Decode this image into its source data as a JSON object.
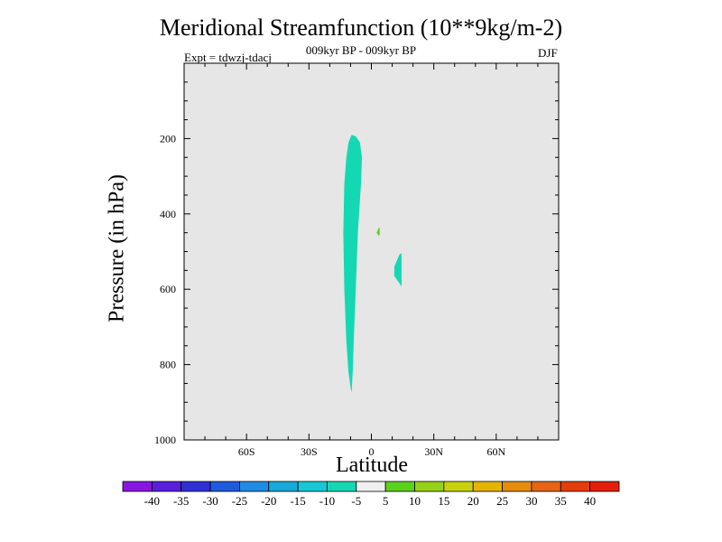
{
  "chart_data": {
    "type": "heatmap",
    "title": "Meridional Streamfunction (10**9kg/m-2)",
    "subtitle": "009kyr BP - 009kyr BP",
    "left_note": "Expt = tdwzj-tdacj",
    "right_note": "DJF",
    "xlabel": "Latitude",
    "ylabel": "Pressure (in hPa)",
    "xlim": [
      -90,
      90
    ],
    "ylim": [
      0,
      1000
    ],
    "y_inverted": true,
    "grid": false,
    "background_color": "#e6e6e6",
    "x_ticks": [
      {
        "value": -60,
        "label": "60S"
      },
      {
        "value": -30,
        "label": "30S"
      },
      {
        "value": 0,
        "label": "0"
      },
      {
        "value": 30,
        "label": "30N"
      },
      {
        "value": 60,
        "label": "60N"
      }
    ],
    "y_ticks": [
      {
        "value": 200,
        "label": "200"
      },
      {
        "value": 400,
        "label": "400"
      },
      {
        "value": 600,
        "label": "600"
      },
      {
        "value": 800,
        "label": "800"
      },
      {
        "value": 1000,
        "label": "1000"
      }
    ],
    "regions": [
      {
        "level": "-10 to -5",
        "color": "#14d8b4",
        "outline": [
          [
            -9.5,
            190
          ],
          [
            -7.5,
            194
          ],
          [
            -5.5,
            210
          ],
          [
            -4.5,
            250
          ],
          [
            -5,
            320
          ],
          [
            -6.5,
            450
          ],
          [
            -7.5,
            600
          ],
          [
            -8.5,
            740
          ],
          [
            -9,
            820
          ],
          [
            -9.5,
            875
          ],
          [
            -10,
            860
          ],
          [
            -11,
            820
          ],
          [
            -12,
            740
          ],
          [
            -13,
            600
          ],
          [
            -13.5,
            450
          ],
          [
            -13,
            320
          ],
          [
            -12,
            250
          ],
          [
            -11,
            210
          ]
        ]
      },
      {
        "level": "5 to 10",
        "color": "#5ad21a",
        "outline": [
          [
            3.5,
            438
          ],
          [
            4,
            436
          ],
          [
            4,
            455
          ],
          [
            3.5,
            458
          ],
          [
            2.5,
            450
          ]
        ]
      },
      {
        "level": "-10 to -5",
        "color": "#14d8b4",
        "outline": [
          [
            13.5,
            508
          ],
          [
            14.5,
            504
          ],
          [
            14.5,
            593
          ],
          [
            13.5,
            584
          ],
          [
            11,
            565
          ],
          [
            11,
            540
          ]
        ]
      }
    ],
    "colorbar": {
      "labels": [
        "-40",
        "-35",
        "-30",
        "-25",
        "-20",
        "-15",
        "-10",
        "-5",
        "5",
        "10",
        "15",
        "20",
        "25",
        "30",
        "35",
        "40"
      ],
      "colors": [
        "#8a14e6",
        "#5a1ee0",
        "#3030d8",
        "#1e5ae0",
        "#1e8ce6",
        "#14aadc",
        "#14c8d8",
        "#14d8b4",
        "#f0f0f0",
        "#5ad21a",
        "#96d214",
        "#c8d20a",
        "#e6b400",
        "#e68c0a",
        "#e66414",
        "#e63c0a",
        "#e61e0a"
      ]
    }
  }
}
